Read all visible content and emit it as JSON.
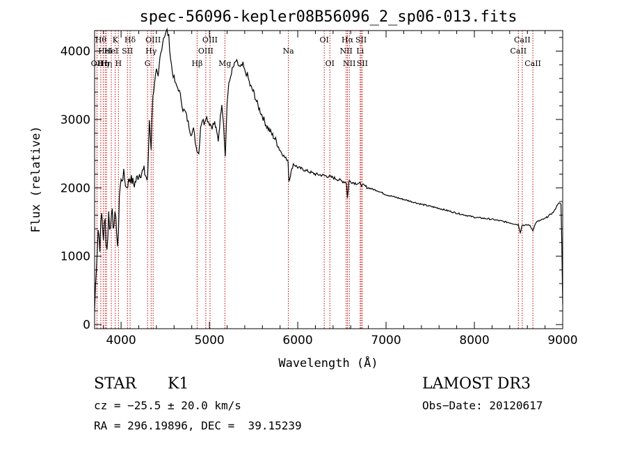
{
  "chart_data": {
    "type": "line",
    "title": "spec-56096-kepler08B56096_2_sp06-013.fits",
    "xlabel": "Wavelength (Å)",
    "ylabel": "Flux (relative)",
    "xlim": [
      3700,
      9000
    ],
    "ylim": [
      -60,
      4300
    ],
    "xticks": [
      4000,
      5000,
      6000,
      7000,
      8000,
      9000
    ],
    "yticks": [
      0,
      1000,
      2000,
      3000,
      4000
    ],
    "series": [
      {
        "name": "flux",
        "x": [
          3700,
          3720,
          3740,
          3760,
          3780,
          3800,
          3820,
          3840,
          3860,
          3880,
          3900,
          3920,
          3940,
          3960,
          3980,
          4000,
          4030,
          4060,
          4100,
          4150,
          4200,
          4260,
          4300,
          4320,
          4340,
          4360,
          4380,
          4400,
          4420,
          4440,
          4460,
          4480,
          4500,
          4520,
          4540,
          4560,
          4580,
          4600,
          4620,
          4650,
          4680,
          4700,
          4730,
          4760,
          4790,
          4820,
          4850,
          4880,
          4900,
          4920,
          4940,
          4960,
          4980,
          5000,
          5030,
          5060,
          5100,
          5140,
          5160,
          5180,
          5200,
          5220,
          5250,
          5300,
          5350,
          5380,
          5400,
          5430,
          5460,
          5500,
          5550,
          5600,
          5650,
          5700,
          5750,
          5800,
          5850,
          5890,
          5900,
          5950,
          6000,
          6100,
          6200,
          6300,
          6400,
          6500,
          6550,
          6563,
          6580,
          6650,
          6700,
          6800,
          6900,
          7000,
          7200,
          7400,
          7600,
          7800,
          8000,
          8200,
          8400,
          8498,
          8520,
          8542,
          8570,
          8620,
          8662,
          8700,
          8800,
          8850,
          8900,
          8950,
          8980,
          8990,
          9000
        ],
        "y": [
          200,
          900,
          1400,
          1200,
          1600,
          1300,
          1500,
          1100,
          1600,
          1400,
          1800,
          1300,
          1700,
          1000,
          1900,
          2100,
          2200,
          2000,
          2150,
          2050,
          2200,
          2250,
          2100,
          3000,
          2600,
          3400,
          3500,
          3700,
          3600,
          3900,
          4050,
          4200,
          4250,
          4300,
          4200,
          3900,
          3700,
          3600,
          3500,
          3450,
          3300,
          3150,
          3100,
          2950,
          2800,
          2850,
          2600,
          2500,
          2900,
          3000,
          2950,
          3050,
          3000,
          2950,
          2900,
          2950,
          2700,
          3250,
          2950,
          2450,
          3250,
          3500,
          3700,
          3850,
          3750,
          3800,
          3700,
          3650,
          3500,
          3400,
          3200,
          3050,
          2900,
          2800,
          2700,
          2550,
          2450,
          2400,
          2100,
          2350,
          2300,
          2250,
          2200,
          2180,
          2150,
          2100,
          2080,
          1850,
          2100,
          2070,
          2060,
          2000,
          1960,
          1900,
          1830,
          1760,
          1700,
          1630,
          1570,
          1540,
          1490,
          1460,
          1350,
          1460,
          1450,
          1460,
          1380,
          1500,
          1550,
          1600,
          1650,
          1780,
          1760,
          1200,
          300
        ]
      }
    ],
    "lines": [
      {
        "wl": 3727,
        "label": "OII",
        "row": 3
      },
      {
        "wl": 3770,
        "label": "Hθ",
        "row": 1
      },
      {
        "wl": 3798,
        "label": "Hη",
        "row": 3
      },
      {
        "wl": 3820,
        "label": "HeI",
        "row": 2
      },
      {
        "wl": 3835,
        "label": "Hη",
        "row": 3
      },
      {
        "wl": 3889,
        "label": "HeI",
        "row": 2
      },
      {
        "wl": 3934,
        "label": "K",
        "row": 1
      },
      {
        "wl": 3970,
        "label": "H",
        "row": 3
      },
      {
        "wl": 4072,
        "label": "SII",
        "row": 2
      },
      {
        "wl": 4102,
        "label": "Hδ",
        "row": 1
      },
      {
        "wl": 4300,
        "label": "G",
        "row": 3
      },
      {
        "wl": 4340,
        "label": "Hγ",
        "row": 2
      },
      {
        "wl": 4363,
        "label": "OIII",
        "row": 1
      },
      {
        "wl": 4861,
        "label": "Hβ",
        "row": 3
      },
      {
        "wl": 4959,
        "label": "OIII",
        "row": 2
      },
      {
        "wl": 5007,
        "label": "OIII",
        "row": 1
      },
      {
        "wl": 5175,
        "label": "Mg",
        "row": 3
      },
      {
        "wl": 5894,
        "label": "Na",
        "row": 2
      },
      {
        "wl": 6300,
        "label": "OI",
        "row": 1
      },
      {
        "wl": 6364,
        "label": "OI",
        "row": 3
      },
      {
        "wl": 6548,
        "label": "NII",
        "row": 2
      },
      {
        "wl": 6563,
        "label": "Hα",
        "row": 1
      },
      {
        "wl": 6584,
        "label": "NII",
        "row": 3
      },
      {
        "wl": 6707,
        "label": "Li",
        "row": 2
      },
      {
        "wl": 6717,
        "label": "SII",
        "row": 1
      },
      {
        "wl": 6731,
        "label": "SII",
        "row": 3
      },
      {
        "wl": 8498,
        "label": "CaII",
        "row": 2
      },
      {
        "wl": 8542,
        "label": "CaII",
        "row": 1
      },
      {
        "wl": 8662,
        "label": "CaII",
        "row": 3
      }
    ]
  },
  "info": {
    "class": "STAR",
    "subclass": "K1",
    "survey": "LAMOST DR3",
    "cz": "cz = −25.5 ± 20.0 km/s",
    "obs_date": "Obs−Date: 20120617",
    "coords": "RA = 296.19896, DEC =  39.15239"
  },
  "colors": {
    "line_marker": "#c00000",
    "spectrum": "#000000",
    "axes": "#000000"
  }
}
